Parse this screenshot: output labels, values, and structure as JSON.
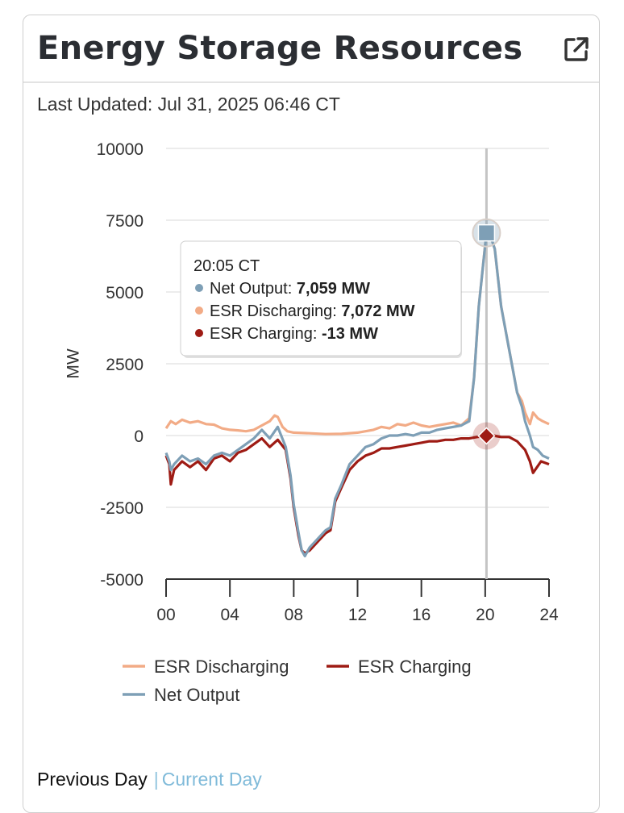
{
  "card": {
    "title": "Energy Storage Resources",
    "external_link_icon": "external-link-icon"
  },
  "last_updated": {
    "label": "Last Updated:",
    "value": "Jul 31, 2025 06:46 CT"
  },
  "footer": {
    "previous_day": "Previous Day",
    "separator": "|",
    "current_day": "Current Day"
  },
  "tooltip": {
    "time": "20:05 CT",
    "rows": [
      {
        "series": "Net Output",
        "label": "Net Output:",
        "value": "7,059 MW",
        "color": "#7e9fb6"
      },
      {
        "series": "ESR Discharging",
        "label": "ESR Discharging:",
        "value": "7,072 MW",
        "color": "#f2ab86"
      },
      {
        "series": "ESR Charging",
        "label": "ESR Charging:",
        "value": "-13 MW",
        "color": "#9e1b14"
      }
    ]
  },
  "colors": {
    "net_output": "#7e9fb6",
    "esr_discharging": "#f2ab86",
    "esr_charging": "#9e1b14",
    "crosshair": "#c4c4c4",
    "grid": "#e6e6e6",
    "link": "#7fbad9"
  },
  "chart_data": {
    "type": "line",
    "ylabel": "MW",
    "xlabel": "",
    "ylim": [
      -5000,
      10000
    ],
    "xlim": [
      0,
      24
    ],
    "yticks": [
      10000,
      7500,
      5000,
      2500,
      0,
      -2500,
      -5000
    ],
    "ytick_labels": [
      "10000",
      "7500",
      "5000",
      "2500",
      "0",
      "-2500",
      "-5000"
    ],
    "xticks": [
      0,
      4,
      8,
      12,
      16,
      20,
      24
    ],
    "xtick_labels": [
      "00",
      "04",
      "08",
      "12",
      "16",
      "20",
      "24"
    ],
    "grid": true,
    "legend_position": "bottom",
    "highlight_x": 20.08,
    "series": [
      {
        "name": "ESR Discharging",
        "color": "#f2ab86",
        "x": [
          0,
          0.3,
          0.6,
          1.0,
          1.5,
          2.0,
          2.5,
          3.0,
          3.5,
          4.0,
          4.5,
          5.0,
          5.5,
          6.0,
          6.5,
          6.8,
          7.0,
          7.3,
          7.6,
          8.0,
          9.0,
          10.0,
          11.0,
          12.0,
          13.0,
          13.5,
          14.0,
          14.5,
          15.0,
          15.5,
          16.0,
          16.5,
          17.0,
          17.5,
          18.0,
          18.5,
          19.0,
          19.3,
          19.6,
          20.08,
          20.3,
          20.6,
          21.0,
          21.5,
          22.0,
          22.3,
          22.5,
          22.8,
          23.0,
          23.3,
          23.6,
          24.0
        ],
        "values": [
          250,
          500,
          400,
          550,
          450,
          500,
          400,
          380,
          250,
          200,
          180,
          150,
          200,
          350,
          500,
          700,
          650,
          300,
          150,
          100,
          80,
          50,
          60,
          100,
          200,
          300,
          250,
          400,
          350,
          450,
          350,
          300,
          350,
          400,
          450,
          350,
          600,
          2000,
          4500,
          7072,
          7000,
          6500,
          4500,
          3000,
          1500,
          1200,
          800,
          400,
          800,
          600,
          500,
          400
        ]
      },
      {
        "name": "ESR Charging",
        "color": "#9e1b14",
        "x": [
          0,
          0.2,
          0.3,
          0.5,
          1.0,
          1.5,
          2.0,
          2.5,
          3.0,
          3.5,
          4.0,
          4.5,
          5.0,
          5.5,
          6.0,
          6.5,
          7.0,
          7.5,
          7.8,
          8.0,
          8.3,
          8.5,
          8.7,
          9.0,
          9.5,
          10.0,
          10.3,
          10.6,
          11.0,
          11.5,
          12.0,
          12.5,
          13.0,
          13.5,
          14.0,
          14.5,
          15.0,
          15.5,
          16.0,
          16.5,
          17.0,
          17.5,
          18.0,
          18.5,
          19.0,
          19.5,
          20.08,
          20.5,
          21.0,
          21.5,
          22.0,
          22.5,
          22.8,
          23.0,
          23.5,
          24.0
        ],
        "values": [
          -700,
          -1000,
          -1700,
          -1200,
          -900,
          -1100,
          -900,
          -1200,
          -800,
          -700,
          -900,
          -600,
          -500,
          -300,
          -100,
          -400,
          -150,
          -500,
          -1500,
          -2500,
          -3500,
          -4000,
          -4100,
          -4000,
          -3700,
          -3400,
          -3300,
          -2300,
          -1800,
          -1200,
          -900,
          -700,
          -600,
          -450,
          -450,
          -400,
          -350,
          -300,
          -250,
          -200,
          -200,
          -150,
          -150,
          -100,
          -100,
          -50,
          -13,
          0,
          -50,
          -50,
          -200,
          -500,
          -900,
          -1300,
          -900,
          -1000
        ]
      },
      {
        "name": "Net Output",
        "color": "#7e9fb6",
        "x": [
          0,
          0.2,
          0.3,
          0.5,
          1.0,
          1.5,
          2.0,
          2.5,
          3.0,
          3.5,
          4.0,
          4.5,
          5.0,
          5.5,
          6.0,
          6.5,
          7.0,
          7.5,
          7.8,
          8.0,
          8.3,
          8.5,
          8.7,
          9.0,
          9.5,
          10.0,
          10.3,
          10.6,
          11.0,
          11.5,
          12.0,
          12.5,
          13.0,
          13.5,
          14.0,
          14.5,
          15.0,
          15.5,
          16.0,
          16.5,
          17.0,
          17.5,
          18.0,
          18.5,
          19.0,
          19.3,
          19.6,
          20.08,
          20.3,
          20.6,
          21.0,
          21.5,
          22.0,
          22.3,
          22.5,
          22.8,
          23.0,
          23.3,
          23.6,
          24.0
        ],
        "values": [
          -600,
          -900,
          -1200,
          -1000,
          -700,
          -900,
          -800,
          -1000,
          -700,
          -600,
          -700,
          -500,
          -300,
          -100,
          200,
          -100,
          300,
          -400,
          -1400,
          -2400,
          -3400,
          -4000,
          -4200,
          -3900,
          -3600,
          -3300,
          -3200,
          -2200,
          -1700,
          -1000,
          -700,
          -400,
          -300,
          -100,
          0,
          0,
          50,
          0,
          100,
          100,
          200,
          250,
          300,
          350,
          500,
          2000,
          4500,
          7059,
          7000,
          6500,
          4500,
          3000,
          1500,
          1000,
          500,
          0,
          -400,
          -500,
          -700,
          -800
        ]
      }
    ]
  }
}
